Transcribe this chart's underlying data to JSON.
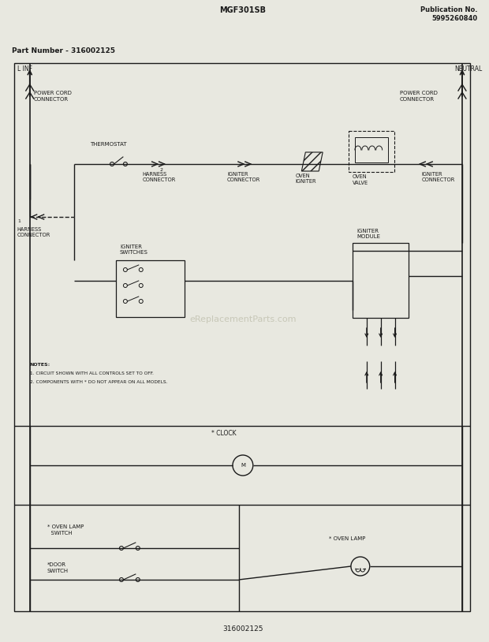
{
  "title_center": "MGF301SB",
  "title_right": "Publication No.\n5995260840",
  "part_number": "Part Number - 316002125",
  "bottom_number": "316002125",
  "bg_color": "#e8e8e0",
  "line_color": "#1a1a1a",
  "watermark": "eReplacementParts.com",
  "notes": [
    "NOTES:",
    "1. CIRCUIT SHOWN WITH ALL CONTROLS SET TO OFF.",
    "2. COMPONENTS WITH * DO NOT APPEAR ON ALL MODELS."
  ]
}
